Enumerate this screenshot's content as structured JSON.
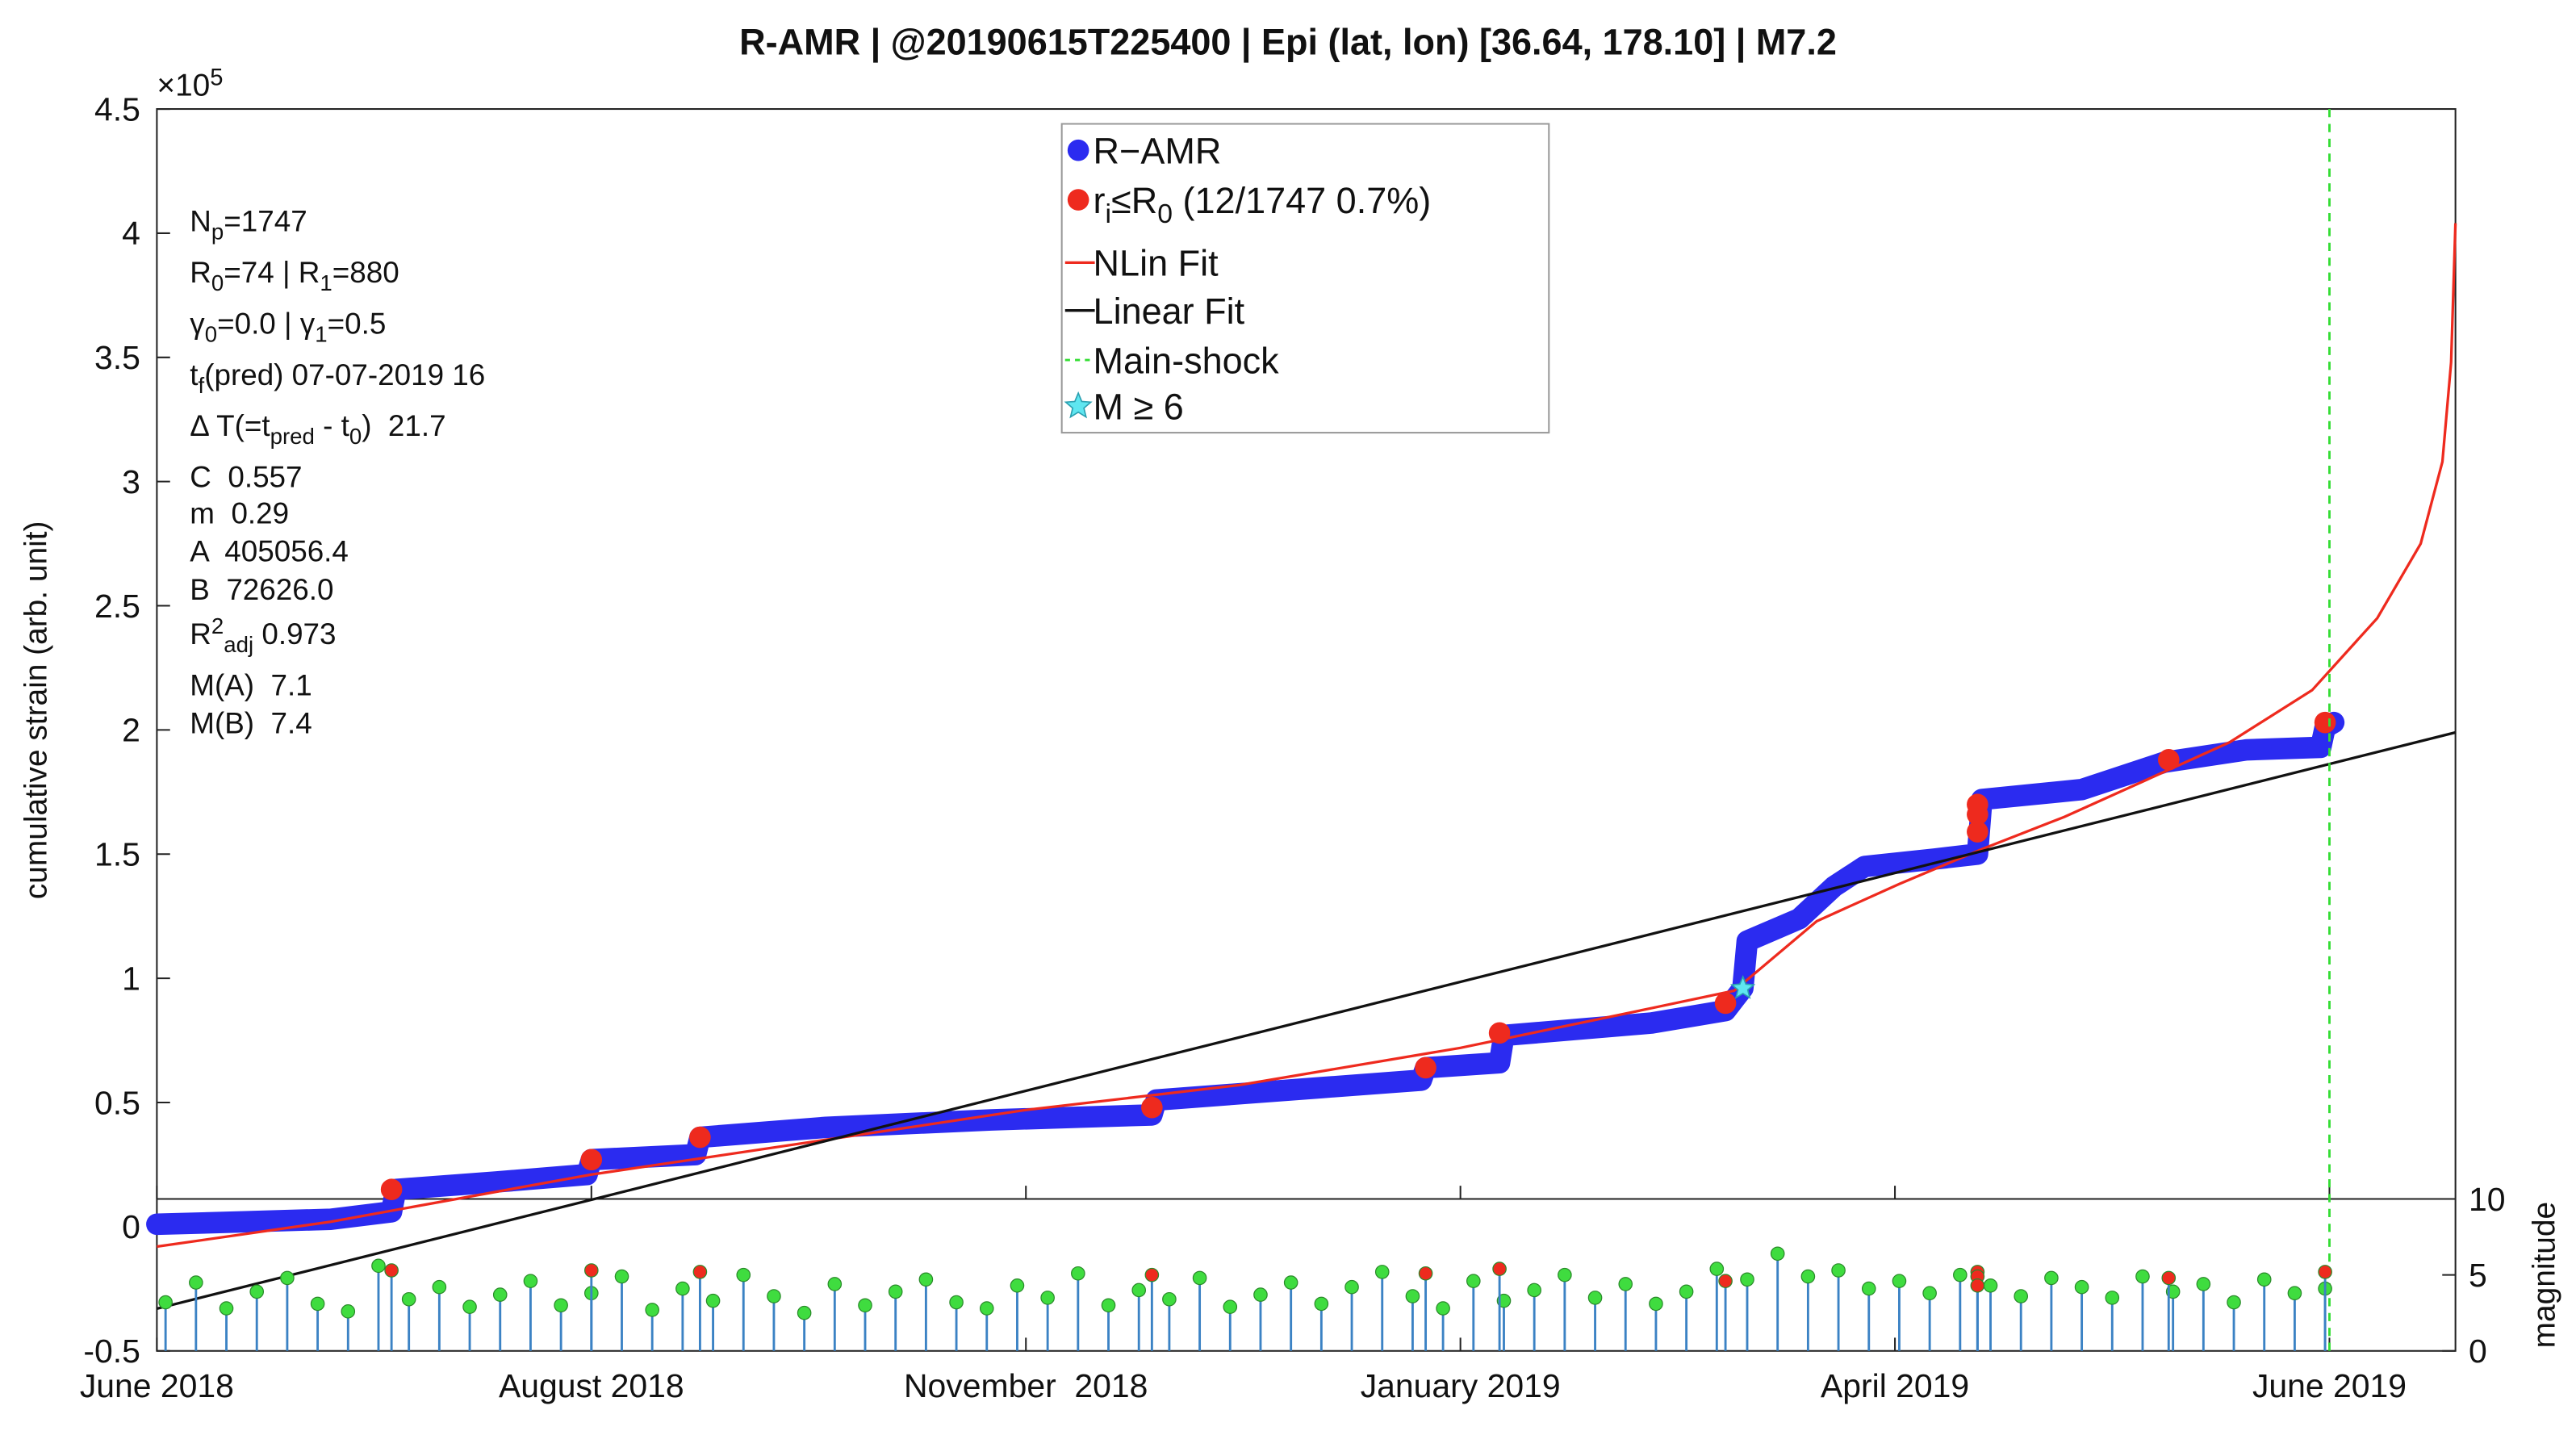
{
  "chart_data": {
    "type": "scatter",
    "title": "R-AMR | @20190615T225400 | Epi (lat, lon) [36.64, 178.10] | M7.2",
    "y_label": "cumulative strain (arb. unit)",
    "y_multiplier": [
      {
        "text": "×10"
      },
      {
        "text": "5",
        "shift": "sup"
      }
    ],
    "y2_label": "magnitude",
    "xlim": [
      0,
      5.29
    ],
    "xticks": [
      {
        "value": 0,
        "label": "June 2018"
      },
      {
        "value": 1,
        "label": "August 2018"
      },
      {
        "value": 2,
        "label": "November  2018"
      },
      {
        "value": 3,
        "label": "January 2019"
      },
      {
        "value": 4,
        "label": "April 2019"
      },
      {
        "value": 5,
        "label": "June 2019"
      }
    ],
    "ylim": [
      -0.5,
      4.5
    ],
    "yticks": [
      -0.5,
      0,
      0.5,
      1,
      1.5,
      2,
      2.5,
      3,
      3.5,
      4,
      4.5
    ],
    "y2lim": [
      0,
      10
    ],
    "y2ticks": [
      0,
      5,
      10
    ],
    "legend_position": "top",
    "annotations": [
      [
        {
          "text": "N"
        },
        {
          "text": "p",
          "shift": "sub"
        },
        {
          "text": "=1747"
        }
      ],
      [
        {
          "text": "R"
        },
        {
          "text": "0",
          "shift": "sub"
        },
        {
          "text": "=74 | R"
        },
        {
          "text": "1",
          "shift": "sub"
        },
        {
          "text": "=880"
        }
      ],
      [
        {
          "text": "γ"
        },
        {
          "text": "0",
          "shift": "sub"
        },
        {
          "text": "=0.0 | γ"
        },
        {
          "text": "1",
          "shift": "sub"
        },
        {
          "text": "=0.5"
        }
      ],
      [
        {
          "text": "t"
        },
        {
          "text": "f",
          "shift": "sub"
        },
        {
          "text": "(pred) 07-07-2019 16"
        }
      ],
      [
        {
          "text": "Δ T(=t"
        },
        {
          "text": "pred",
          "shift": "sub"
        },
        {
          "text": " - t"
        },
        {
          "text": "0",
          "shift": "sub"
        },
        {
          "text": ")  21.7"
        }
      ],
      [
        {
          "text": "C  0.557"
        }
      ],
      [
        {
          "text": "m  0.29"
        }
      ],
      [
        {
          "text": "A  405056.4"
        }
      ],
      [
        {
          "text": "B  72626.0"
        }
      ],
      [
        {
          "text": "R"
        },
        {
          "text": "2",
          "shift": "sup"
        },
        {
          "text": "adj",
          "shift": "sub"
        },
        {
          "text": " 0.973"
        }
      ],
      [
        {
          "text": "M(A)  7.1"
        }
      ],
      [
        {
          "text": "M(B)  7.4"
        }
      ]
    ],
    "series": [
      {
        "name": "R−AMR",
        "kind": "band",
        "color": "#2b2bf0",
        "x": [
          0,
          0.21,
          0.4,
          0.54,
          0.55,
          0.78,
          0.99,
          1.0,
          1.24,
          1.25,
          1.54,
          1.92,
          2.29,
          2.3,
          2.68,
          2.91,
          2.92,
          3.09,
          3.1,
          3.44,
          3.61,
          3.65,
          3.66,
          3.78,
          3.86,
          3.93,
          4.09,
          4.19,
          4.2,
          4.43,
          4.62,
          4.81,
          4.98,
          4.99,
          5.01
        ],
        "values": [
          0.01,
          0.02,
          0.03,
          0.06,
          0.15,
          0.18,
          0.21,
          0.27,
          0.29,
          0.36,
          0.4,
          0.43,
          0.45,
          0.51,
          0.56,
          0.59,
          0.64,
          0.66,
          0.77,
          0.82,
          0.87,
          0.96,
          1.15,
          1.24,
          1.37,
          1.45,
          1.48,
          1.5,
          1.72,
          1.76,
          1.87,
          1.92,
          1.93,
          2.01,
          2.03
        ]
      },
      {
        "name": [
          {
            "text": "r"
          },
          {
            "text": "i",
            "shift": "sub"
          },
          {
            "text": "≤R"
          },
          {
            "text": "0",
            "shift": "sub"
          },
          {
            "text": " (12/1747 0.7%)"
          }
        ],
        "kind": "points",
        "color": "#ee2a1e",
        "x": [
          0.54,
          1.0,
          1.25,
          2.29,
          2.92,
          3.09,
          3.61,
          4.19,
          4.19,
          4.19,
          4.63,
          4.99
        ],
        "values": [
          0.15,
          0.27,
          0.36,
          0.48,
          0.64,
          0.78,
          0.9,
          1.7,
          1.66,
          1.59,
          1.88,
          2.03
        ]
      },
      {
        "name": "NLin Fit",
        "kind": "line",
        "color": "#ee2a1e",
        "x": [
          0,
          0.4,
          1.0,
          1.54,
          2.0,
          2.49,
          3.0,
          3.44,
          3.63,
          3.82,
          4.01,
          4.2,
          4.39,
          4.58,
          4.77,
          4.96,
          5.11,
          5.21,
          5.26,
          5.28,
          5.29
        ],
        "values": [
          -0.08,
          0.02,
          0.21,
          0.35,
          0.47,
          0.57,
          0.72,
          0.88,
          0.95,
          1.23,
          1.38,
          1.52,
          1.65,
          1.8,
          1.95,
          2.16,
          2.45,
          2.75,
          3.08,
          3.48,
          4.04
        ]
      },
      {
        "name": "Linear Fit",
        "kind": "line",
        "color": "#111111",
        "x": [
          0,
          5.29
        ],
        "values": [
          -0.33,
          1.99
        ]
      },
      {
        "name": "Main-shock",
        "kind": "vline",
        "color": "#33dd33",
        "x": [
          5.0
        ]
      },
      {
        "name": "M ≥ 6",
        "kind": "star",
        "color": "#5fe6f0",
        "x": [
          3.65
        ],
        "values": [
          0.96
        ]
      },
      {
        "kind": "stem",
        "axis": "y2",
        "color": "#3fdc3f",
        "stem_color": "#3b82c4",
        "x": [
          0.02,
          0.09,
          0.16,
          0.23,
          0.3,
          0.37,
          0.44,
          0.51,
          0.58,
          0.65,
          0.72,
          0.79,
          0.86,
          0.93,
          1.0,
          1.07,
          1.14,
          1.21,
          1.28,
          1.35,
          1.42,
          1.49,
          1.56,
          1.63,
          1.7,
          1.77,
          1.84,
          1.91,
          1.98,
          2.05,
          2.12,
          2.19,
          2.26,
          2.33,
          2.4,
          2.47,
          2.54,
          2.61,
          2.68,
          2.75,
          2.82,
          2.89,
          2.96,
          3.03,
          3.1,
          3.17,
          3.24,
          3.31,
          3.38,
          3.45,
          3.52,
          3.59,
          3.66,
          3.73,
          3.8,
          3.87,
          3.94,
          4.01,
          4.08,
          4.15,
          4.22,
          4.29,
          4.36,
          4.43,
          4.5,
          4.57,
          4.64,
          4.71,
          4.78,
          4.85,
          4.92,
          4.99
        ],
        "values": [
          3.2,
          4.5,
          2.8,
          3.9,
          4.8,
          3.1,
          2.6,
          5.6,
          3.4,
          4.2,
          2.9,
          3.7,
          4.6,
          3.0,
          3.8,
          4.9,
          2.7,
          4.1,
          3.3,
          5.0,
          3.6,
          2.5,
          4.4,
          3.0,
          3.9,
          4.7,
          3.2,
          2.8,
          4.3,
          3.5,
          5.1,
          3.0,
          4.0,
          3.4,
          4.8,
          2.9,
          3.7,
          4.5,
          3.1,
          4.2,
          5.2,
          3.6,
          2.8,
          4.6,
          3.3,
          4.0,
          5.0,
          3.5,
          4.4,
          3.1,
          3.9,
          5.4,
          4.7,
          6.4,
          4.9,
          5.3,
          4.1,
          4.6,
          3.8,
          5.0,
          4.3,
          3.6,
          4.8,
          4.2,
          3.5,
          4.9,
          3.9,
          4.4,
          3.2,
          4.7,
          3.8,
          4.1
        ]
      },
      {
        "kind": "stem",
        "axis": "y2",
        "color": "#ee2a1e",
        "stem_color": "#3b82c4",
        "x": [
          0.54,
          1.0,
          1.25,
          2.29,
          2.92,
          3.09,
          3.61,
          4.19,
          4.19,
          4.19,
          4.63,
          4.99
        ],
        "values": [
          5.3,
          5.3,
          5.2,
          5.0,
          5.1,
          5.4,
          4.6,
          5.2,
          4.9,
          4.3,
          4.8,
          5.2
        ]
      }
    ]
  }
}
